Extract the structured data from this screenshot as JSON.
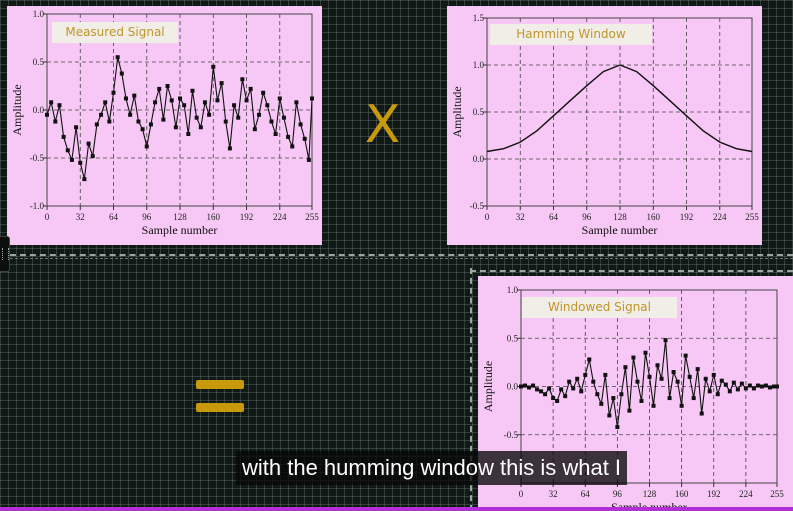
{
  "colors": {
    "panel_bg": "#f7c8f5",
    "title_text": "#c0952a",
    "operator": "#c79a0c",
    "caption_bg": "#080808",
    "caption_text": "#ffffff",
    "progress": "#b22fd6"
  },
  "operators": {
    "multiply": "X"
  },
  "caption": {
    "text": "with the humming window this is what I"
  },
  "chart_data": [
    {
      "type": "line",
      "title": "Measured Signal",
      "xlabel": "Sample number",
      "ylabel": "Amplitude",
      "xlim": [
        0,
        255
      ],
      "ylim": [
        -1.0,
        1.0
      ],
      "xticks": [
        "0",
        "32",
        "64",
        "96",
        "128",
        "160",
        "192",
        "224",
        "255"
      ],
      "yticks": [
        "1.0",
        "0.5",
        "0.0",
        "-0.5",
        "-1.0"
      ],
      "ytick_values": [
        1.0,
        0.5,
        0.0,
        -0.5,
        -1.0
      ],
      "grid": true,
      "markers": true,
      "series": [
        {
          "x": [
            0,
            4,
            8,
            12,
            16,
            20,
            24,
            28,
            32,
            36,
            40,
            44,
            48,
            52,
            56,
            60,
            64,
            68,
            72,
            76,
            80,
            84,
            88,
            92,
            96,
            100,
            104,
            108,
            112,
            116,
            120,
            124,
            128,
            132,
            136,
            140,
            144,
            148,
            152,
            156,
            160,
            164,
            168,
            172,
            176,
            180,
            184,
            188,
            192,
            196,
            200,
            204,
            208,
            212,
            216,
            220,
            224,
            228,
            232,
            236,
            240,
            244,
            248,
            252,
            255
          ],
          "values": [
            -0.05,
            0.08,
            -0.12,
            0.05,
            -0.28,
            -0.42,
            -0.52,
            -0.18,
            -0.55,
            -0.72,
            -0.35,
            -0.48,
            -0.15,
            -0.05,
            0.08,
            -0.12,
            0.18,
            0.55,
            0.38,
            0.12,
            -0.05,
            0.15,
            -0.12,
            -0.2,
            -0.38,
            -0.15,
            0.08,
            0.22,
            -0.1,
            0.25,
            0.1,
            -0.18,
            0.12,
            0.05,
            -0.25,
            0.2,
            -0.08,
            -0.18,
            0.08,
            -0.05,
            0.45,
            0.1,
            0.28,
            -0.12,
            -0.4,
            0.05,
            -0.08,
            0.32,
            0.1,
            0.22,
            -0.2,
            -0.05,
            0.18,
            0.05,
            -0.12,
            -0.25,
            0.12,
            -0.08,
            -0.28,
            -0.38,
            0.08,
            -0.15,
            -0.3,
            -0.52,
            0.12
          ]
        }
      ]
    },
    {
      "type": "line",
      "title": "Hamming Window",
      "xlabel": "Sample number",
      "ylabel": "Amplitude",
      "xlim": [
        0,
        255
      ],
      "ylim": [
        -0.5,
        1.5
      ],
      "xticks": [
        "0",
        "32",
        "64",
        "96",
        "128",
        "160",
        "192",
        "224",
        "255"
      ],
      "yticks": [
        "1.5",
        "1.0",
        "0.5",
        "0.0",
        "-0.5"
      ],
      "ytick_values": [
        1.5,
        1.0,
        0.5,
        0.0,
        -0.5
      ],
      "grid": true,
      "markers": false,
      "series": [
        {
          "x": [
            0,
            16,
            32,
            48,
            64,
            80,
            96,
            112,
            128,
            144,
            160,
            176,
            192,
            208,
            224,
            240,
            255
          ],
          "values": [
            0.08,
            0.11,
            0.18,
            0.3,
            0.46,
            0.62,
            0.78,
            0.93,
            1.0,
            0.93,
            0.78,
            0.62,
            0.46,
            0.3,
            0.18,
            0.11,
            0.08
          ]
        }
      ]
    },
    {
      "type": "line",
      "title": "Windowed Signal",
      "xlabel": "Sample number",
      "ylabel": "Amplitude",
      "xlim": [
        0,
        255
      ],
      "ylim": [
        -1.0,
        1.0
      ],
      "xticks": [
        "0",
        "32",
        "64",
        "96",
        "128",
        "160",
        "192",
        "224",
        "255"
      ],
      "yticks": [
        "1.0",
        "0.5",
        "0.0",
        "-0.5"
      ],
      "ytick_values": [
        1.0,
        0.5,
        0.0,
        -0.5
      ],
      "grid": true,
      "markers": true,
      "series": [
        {
          "x": [
            0,
            4,
            8,
            12,
            16,
            20,
            24,
            28,
            32,
            36,
            40,
            44,
            48,
            52,
            56,
            60,
            64,
            68,
            72,
            76,
            80,
            84,
            88,
            92,
            96,
            100,
            104,
            108,
            112,
            116,
            120,
            124,
            128,
            132,
            136,
            140,
            144,
            148,
            152,
            156,
            160,
            164,
            168,
            172,
            176,
            180,
            184,
            188,
            192,
            196,
            200,
            204,
            208,
            212,
            216,
            220,
            224,
            228,
            232,
            236,
            240,
            244,
            248,
            252,
            255
          ],
          "values": [
            0.0,
            0.01,
            -0.01,
            0.01,
            -0.03,
            -0.05,
            -0.08,
            -0.02,
            -0.12,
            -0.15,
            -0.03,
            -0.1,
            0.05,
            -0.02,
            0.08,
            -0.05,
            0.12,
            0.28,
            0.05,
            -0.08,
            -0.18,
            0.12,
            -0.3,
            -0.12,
            -0.42,
            -0.08,
            0.2,
            -0.25,
            0.3,
            0.05,
            -0.15,
            0.35,
            0.1,
            -0.2,
            0.22,
            0.08,
            0.48,
            -0.12,
            0.15,
            0.05,
            -0.2,
            0.32,
            0.1,
            -0.12,
            0.18,
            -0.28,
            0.08,
            -0.05,
            0.12,
            -0.08,
            0.06,
            0.02,
            -0.05,
            0.04,
            -0.03,
            0.03,
            -0.02,
            0.01,
            -0.02,
            0.01,
            0.0,
            0.01,
            -0.01,
            0.0,
            0.0
          ]
        }
      ]
    }
  ]
}
